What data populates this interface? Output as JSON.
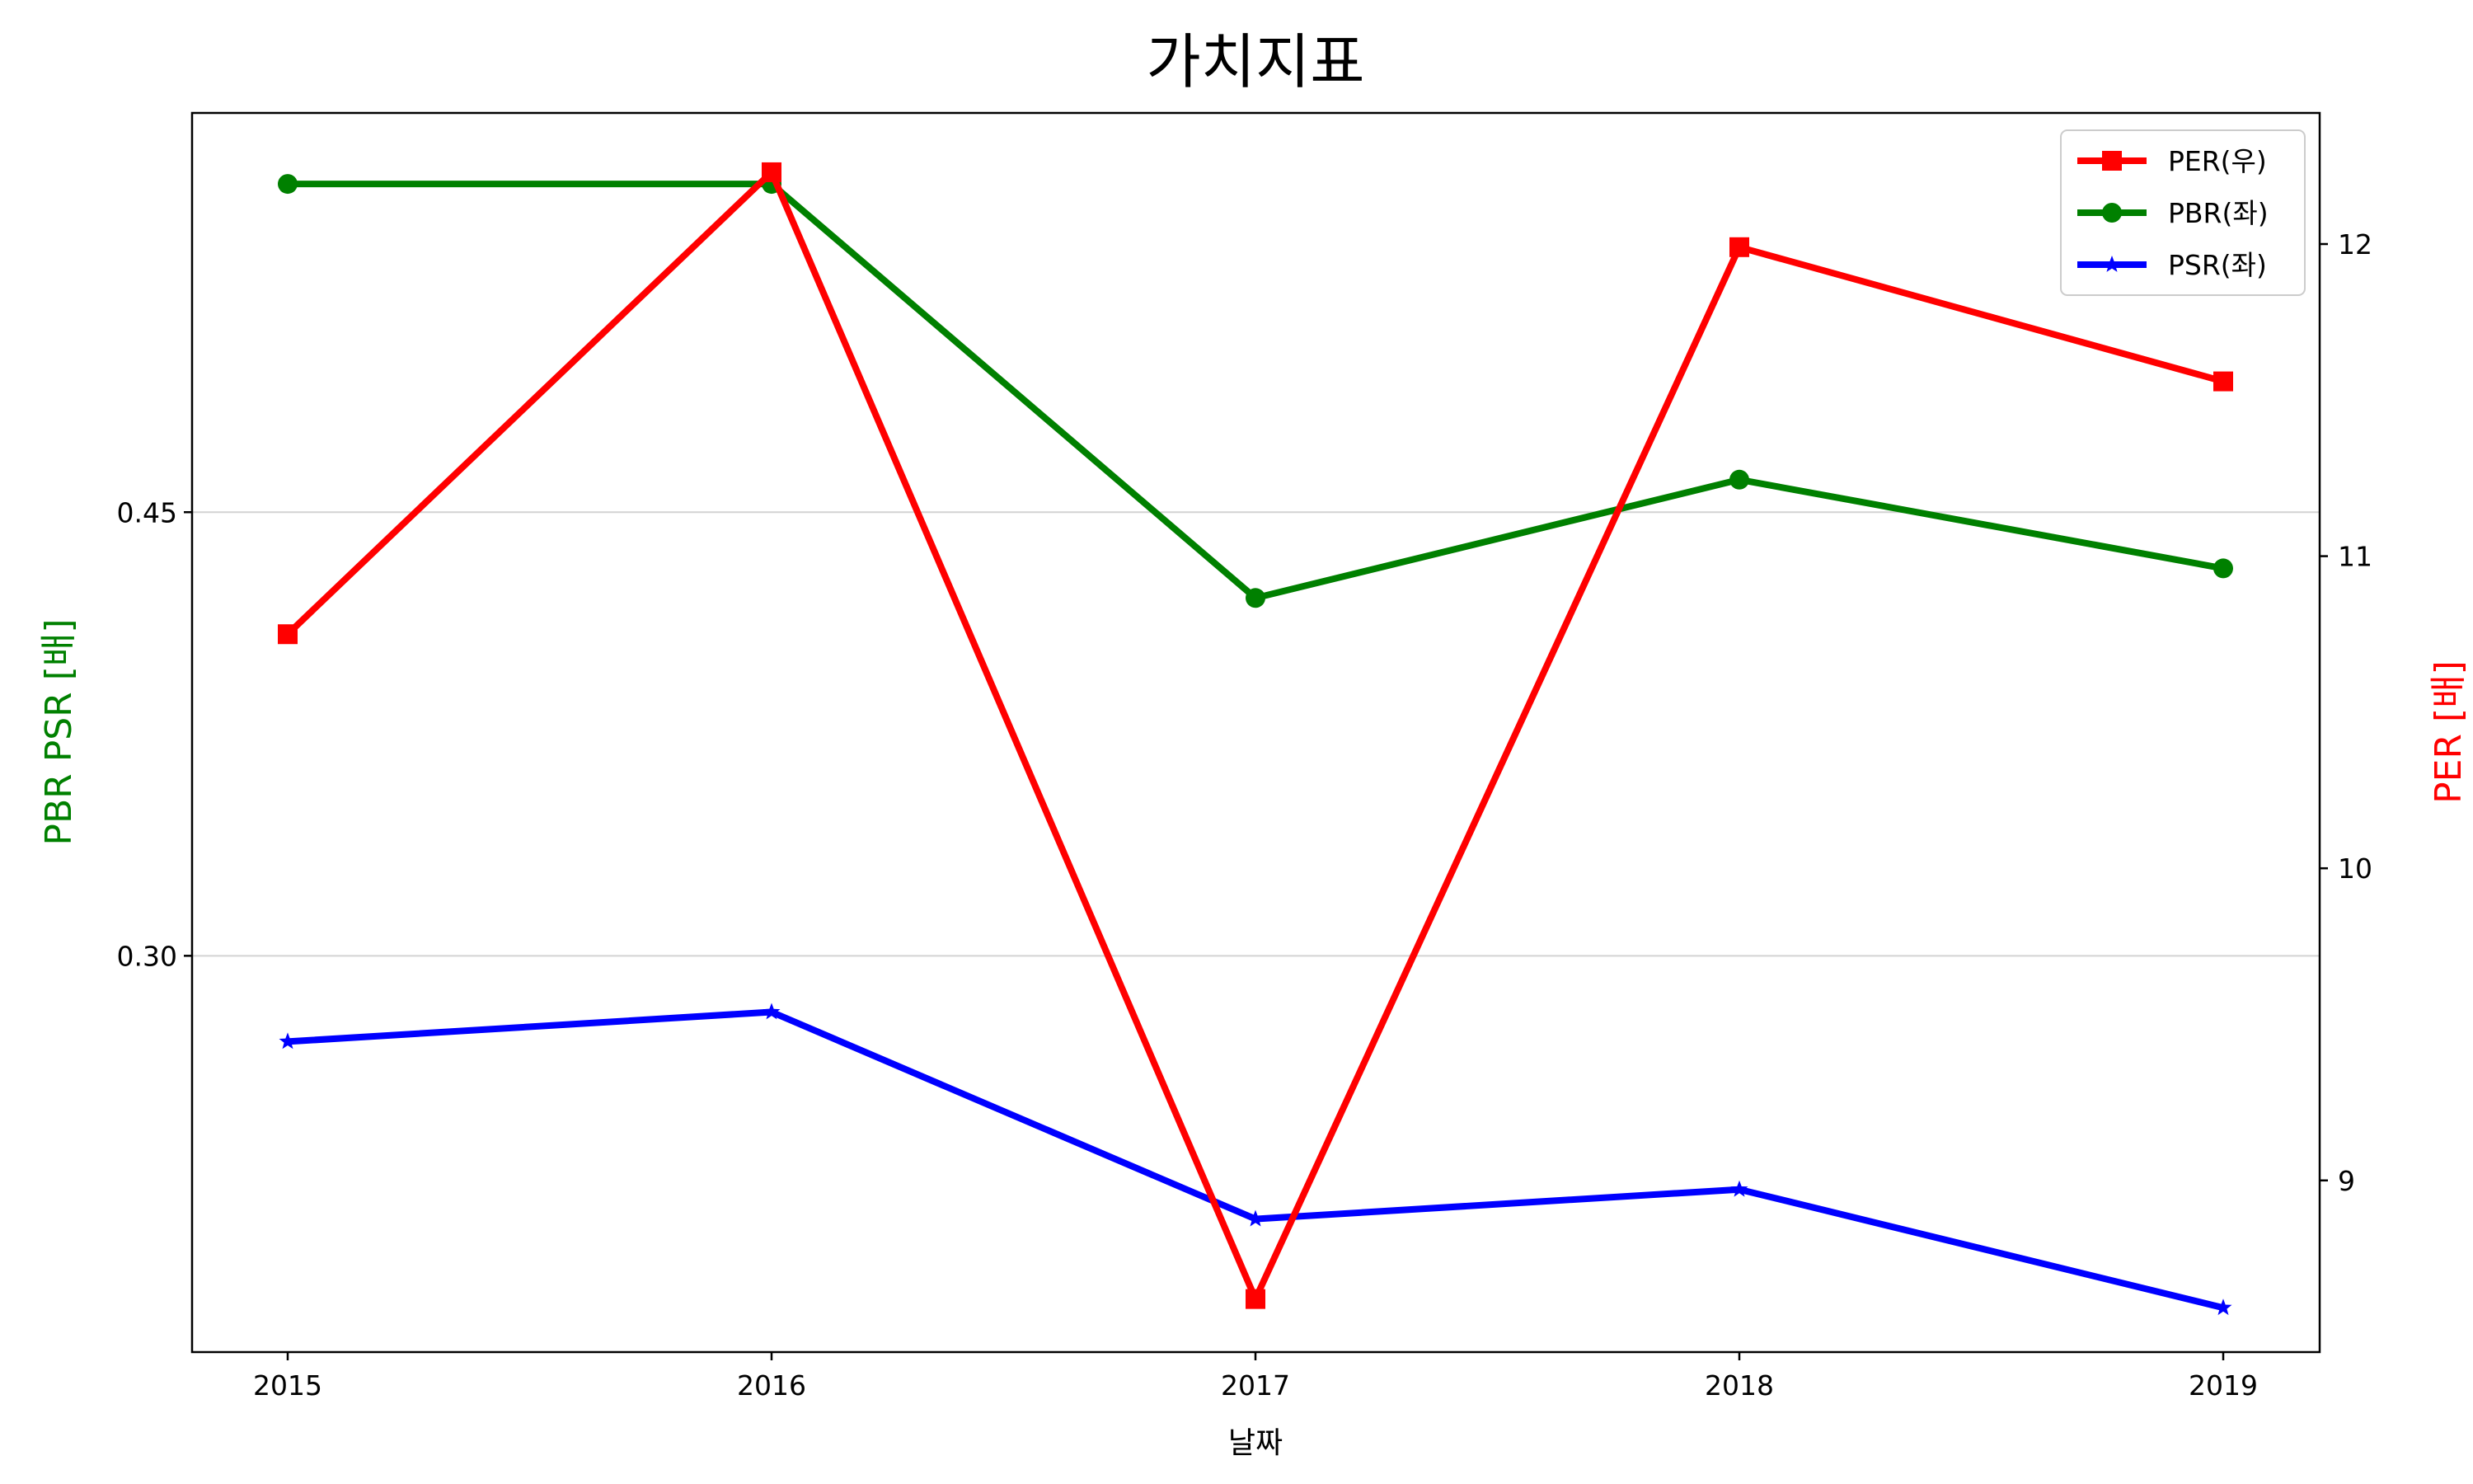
{
  "chart_data": {
    "type": "line",
    "title": "가치지표",
    "xlabel": "날짜",
    "ylabel_left": "PBR PSR [배]",
    "ylabel_right": "PER [배]",
    "x": [
      "2015",
      "2016",
      "2017",
      "2018",
      "2019"
    ],
    "left_axis": {
      "ylim": [
        0.166,
        0.585
      ],
      "ticks": [
        0.3,
        0.45
      ],
      "tick_labels": [
        "0.30",
        "0.45"
      ],
      "grid": true
    },
    "right_axis": {
      "ylim": [
        8.45,
        12.42
      ],
      "ticks": [
        9,
        10,
        11,
        12
      ],
      "tick_labels": [
        "9",
        "10",
        "11",
        "12"
      ]
    },
    "series": [
      {
        "name": "PER(우)",
        "axis": "right",
        "color": "#ff0000",
        "marker": "square",
        "values": [
          10.75,
          12.23,
          8.62,
          11.99,
          11.56
        ]
      },
      {
        "name": "PBR(좌)",
        "axis": "left",
        "color": "#008000",
        "marker": "circle",
        "values": [
          0.561,
          0.561,
          0.421,
          0.461,
          0.431
        ]
      },
      {
        "name": "PSR(좌)",
        "axis": "left",
        "color": "#0000ff",
        "marker": "star",
        "values": [
          0.271,
          0.281,
          0.211,
          0.221,
          0.181
        ]
      }
    ],
    "legend": {
      "position": "top-right"
    },
    "colors": {
      "left_label": "#008000",
      "right_label": "#ff0000"
    }
  }
}
